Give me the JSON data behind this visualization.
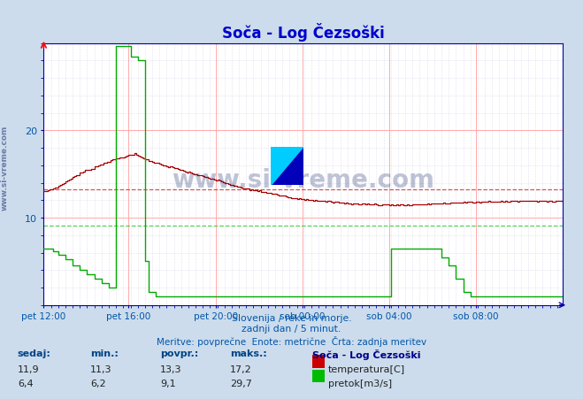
{
  "title": "Soča - Log Čezsoški",
  "bg_color": "#ccdcec",
  "plot_bg_color": "#ffffff",
  "title_color": "#0000cc",
  "axis_color": "#0000aa",
  "tick_label_color": "#0055aa",
  "subtitle_lines": [
    "Slovenija / reke in morje.",
    "zadnji dan / 5 minut.",
    "Meritve: povprečne  Enote: metrične  Črta: zadnja meritev"
  ],
  "x_labels": [
    "pet 12:00",
    "pet 16:00",
    "pet 20:00",
    "sob 00:00",
    "sob 04:00",
    "sob 08:00"
  ],
  "x_ticks_norm": [
    0.0,
    0.1667,
    0.3333,
    0.5,
    0.6667,
    0.8333
  ],
  "total_points": 288,
  "ylim": [
    0,
    30
  ],
  "yticks": [
    10,
    20
  ],
  "temp_color": "#aa0000",
  "flow_color": "#00aa00",
  "avg_temp_color": "#cc4444",
  "avg_flow_color": "#44cc44",
  "avg_temp": 13.3,
  "avg_flow": 9.1,
  "watermark": "www.si-vreme.com",
  "side_watermark": "www.si-vreme.com",
  "table_headers": [
    "sedaj:",
    "min.:",
    "povpr.:",
    "maks.:"
  ],
  "table_temp": [
    "11,9",
    "11,3",
    "13,3",
    "17,2"
  ],
  "table_flow": [
    "6,4",
    "6,2",
    "9,1",
    "29,7"
  ],
  "legend_title": "Soča - Log Čezsoški",
  "legend_temp": "temperatura[C]",
  "legend_flow": "pretok[m3/s]"
}
